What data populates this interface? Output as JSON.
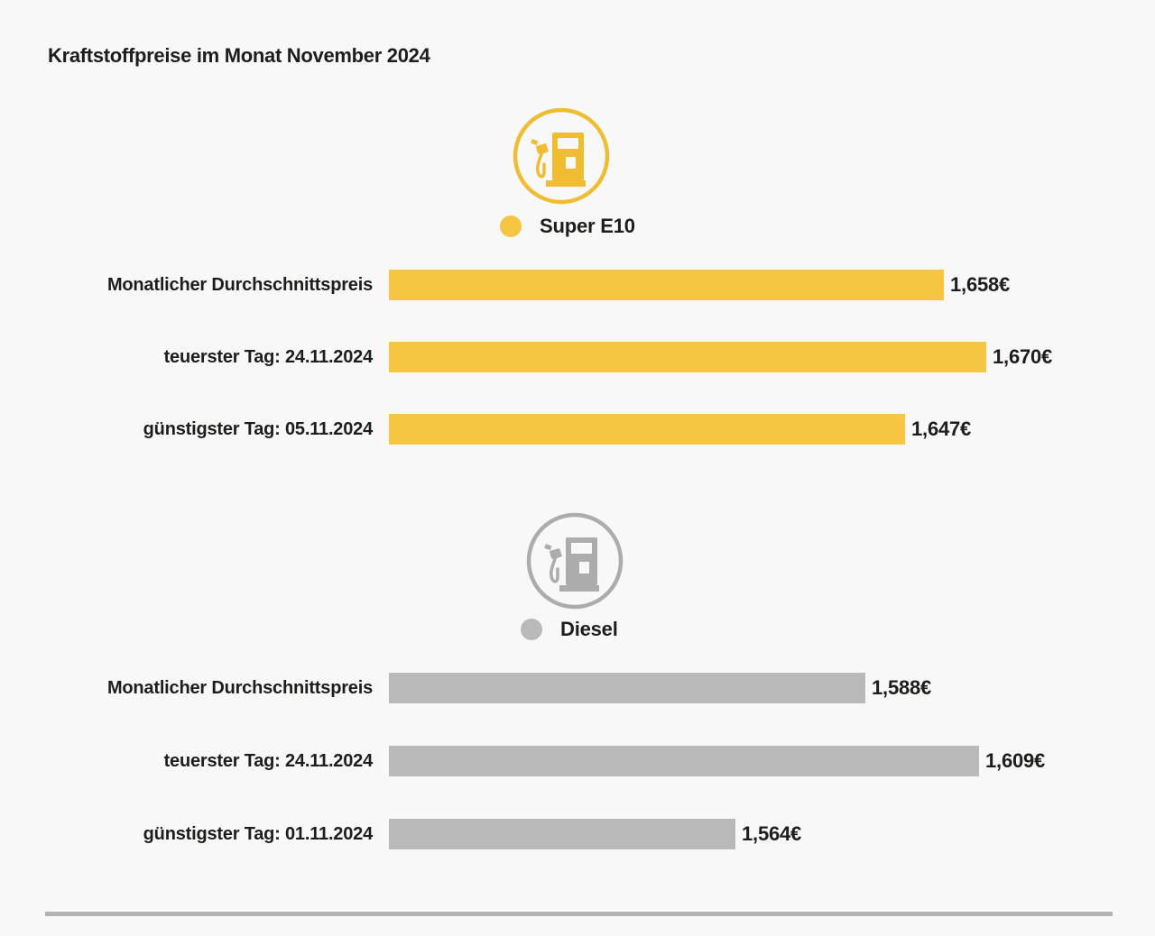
{
  "title": "Kraftstoffpreise im Monat November 2024",
  "colors": {
    "background": "#F8F8F8",
    "text": "#1D1D1B",
    "divider": "#B3B3B3"
  },
  "chart_data": [
    {
      "type": "bar",
      "orientation": "horizontal",
      "title": "Super E10",
      "unit": "€",
      "bar_color": "#F6C642",
      "icon_color": "#F0BD32",
      "icon": "fuel-pump-icon",
      "legend_position": "top-center",
      "grid": false,
      "categories": [
        "Monatlicher Durchschnittspreis",
        "teuerster Tag: 24.11.2024",
        "günstigster Tag: 05.11.2024"
      ],
      "values": [
        1.658,
        1.67,
        1.647
      ],
      "value_labels": [
        "1,658€",
        "1,670€",
        "1,647€"
      ]
    },
    {
      "type": "bar",
      "orientation": "horizontal",
      "title": "Diesel",
      "unit": "€",
      "bar_color": "#B9B9B9",
      "icon_color": "#ACACAC",
      "icon": "fuel-pump-icon",
      "legend_position": "top-center",
      "grid": false,
      "categories": [
        "Monatlicher Durchschnittspreis",
        "teuerster Tag: 24.11.2024",
        "günstigster Tag: 01.11.2024"
      ],
      "values": [
        1.588,
        1.609,
        1.564
      ],
      "value_labels": [
        "1,588€",
        "1,609€",
        "1,564€"
      ]
    }
  ]
}
